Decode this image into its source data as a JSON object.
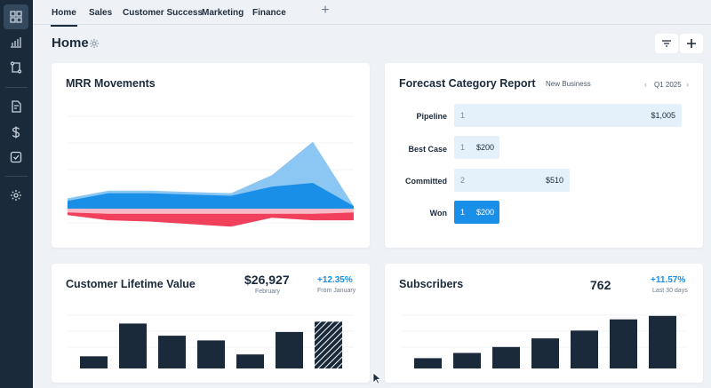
{
  "colors": {
    "sidebar": "#1b2a3b",
    "accent": "#1a8fe8",
    "bar_dark": "#1b2a3b",
    "negative": "#f0405c",
    "area_light": "#8cc6f3"
  },
  "sidebar": {
    "items": [
      {
        "icon": "grid-icon"
      },
      {
        "icon": "bar-chart-icon"
      },
      {
        "icon": "pipeline-icon"
      },
      {
        "icon": "report-icon"
      },
      {
        "icon": "dollar-icon"
      },
      {
        "icon": "checkbox-icon"
      },
      {
        "icon": "gear-icon"
      }
    ]
  },
  "tabs": [
    {
      "label": "Home"
    },
    {
      "label": "Sales"
    },
    {
      "label": "Customer Success"
    },
    {
      "label": "Marketing"
    },
    {
      "label": "Finance"
    }
  ],
  "page": {
    "title": "Home"
  },
  "mrr": {
    "title": "MRR Movements",
    "chart_data": {
      "type": "area",
      "title": "MRR Movements",
      "x": [
        1,
        2,
        3,
        4,
        5,
        6,
        7,
        8
      ],
      "series": [
        {
          "values": [
            8,
            14,
            14,
            13,
            12,
            26,
            52,
            2
          ]
        },
        {
          "values": [
            6,
            12,
            12,
            11,
            10,
            17,
            20,
            2
          ]
        },
        {
          "values": [
            -3,
            -4,
            -4,
            -4,
            -4,
            -4,
            -4,
            -3
          ]
        },
        {
          "values": [
            -2,
            -5,
            -6,
            -8,
            -10,
            -3,
            -5,
            -6
          ]
        }
      ]
    }
  },
  "forecast": {
    "title": "Forecast Category Report",
    "subtitle": "New Business",
    "period": "Q1 2025",
    "rows": [
      {
        "label": "Pipeline",
        "count": "1",
        "value": "$1,005",
        "amount": 1005
      },
      {
        "label": "Best Case",
        "count": "1",
        "value": "$200",
        "amount": 200
      },
      {
        "label": "Committed",
        "count": "2",
        "value": "$510",
        "amount": 510
      },
      {
        "label": "Won",
        "count": "1",
        "value": "$200",
        "amount": 200
      }
    ]
  },
  "clv": {
    "title": "Customer Lifetime Value",
    "value": "$26,927",
    "value_sub": "February",
    "delta": "+12.35%",
    "delta_sub": "From January",
    "chart_data": {
      "type": "bar",
      "values": [
        13,
        48,
        35,
        30,
        15,
        39,
        50
      ],
      "ylim": [
        0,
        55
      ],
      "hatched_last": true
    }
  },
  "subscribers": {
    "title": "Subscribers",
    "value": "762",
    "delta": "+11.57%",
    "delta_sub": "Last 30 days",
    "chart_data": {
      "type": "bar",
      "values": [
        12,
        18,
        25,
        35,
        44,
        57,
        61
      ],
      "ylim": [
        0,
        66
      ]
    }
  }
}
